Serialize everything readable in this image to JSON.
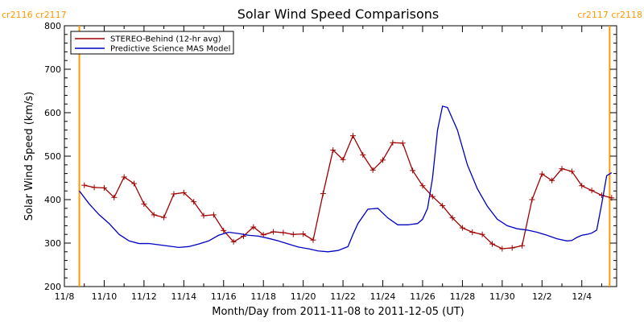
{
  "chart_data": {
    "type": "line",
    "title": "Solar Wind Speed Comparisons",
    "xlabel": "Month/Day from 2011-11-08 to 2011-12-05 (UT)",
    "ylabel": "Solar Wind Speed (km/s)",
    "ylim": [
      200,
      800
    ],
    "y_ticks": [
      200,
      300,
      400,
      500,
      600,
      700,
      800
    ],
    "x_ticks": [
      {
        "day": 0,
        "label": "11/8"
      },
      {
        "day": 2,
        "label": "11/10"
      },
      {
        "day": 4,
        "label": "11/12"
      },
      {
        "day": 6,
        "label": "11/14"
      },
      {
        "day": 8,
        "label": "11/16"
      },
      {
        "day": 10,
        "label": "11/18"
      },
      {
        "day": 12,
        "label": "11/20"
      },
      {
        "day": 14,
        "label": "11/22"
      },
      {
        "day": 16,
        "label": "11/24"
      },
      {
        "day": 18,
        "label": "11/26"
      },
      {
        "day": 20,
        "label": "11/28"
      },
      {
        "day": 22,
        "label": "11/30"
      },
      {
        "day": 24,
        "label": "12/2"
      },
      {
        "day": 26,
        "label": "12/4"
      }
    ],
    "xlim": [
      0,
      27.75
    ],
    "carrington_markers": [
      {
        "day": 0.75,
        "label": "cr2116 cr2117",
        "label_side": "left"
      },
      {
        "day": 27.4,
        "label": "cr2117 cr2118",
        "label_side": "right"
      }
    ],
    "legend_position": "top-left",
    "series": [
      {
        "name": "STEREO-Behind (12-hr avg)",
        "color": "#A00000",
        "marker": "plus",
        "x": [
          1.0,
          1.5,
          2.0,
          2.5,
          3.0,
          3.5,
          4.0,
          4.5,
          5.0,
          5.5,
          6.0,
          6.5,
          7.0,
          7.5,
          8.0,
          8.5,
          9.0,
          9.5,
          10.0,
          10.5,
          11.0,
          11.5,
          12.0,
          12.5,
          13.0,
          13.5,
          14.0,
          14.5,
          15.0,
          15.5,
          16.0,
          16.5,
          17.0,
          17.5,
          18.0,
          18.5,
          19.0,
          19.5,
          20.0,
          20.5,
          21.0,
          21.5,
          22.0,
          22.5,
          23.0,
          23.5,
          24.0,
          24.5,
          25.0,
          25.5,
          26.0,
          26.5,
          27.0,
          27.5
        ],
        "y": [
          433,
          428,
          427,
          405,
          452,
          437,
          390,
          365,
          359,
          413,
          416,
          395,
          363,
          365,
          329,
          303,
          316,
          337,
          319,
          326,
          324,
          320,
          321,
          307,
          414,
          514,
          492,
          547,
          503,
          468,
          491,
          531,
          530,
          467,
          432,
          407,
          386,
          358,
          335,
          325,
          320,
          298,
          287,
          289,
          294,
          400,
          459,
          444,
          471,
          465,
          432,
          421,
          410,
          404
        ]
      },
      {
        "name": "Predictive Science MAS Model",
        "color": "#0000C0",
        "x": [
          0.75,
          1.25,
          1.75,
          2.25,
          2.75,
          3.25,
          3.75,
          4.25,
          4.75,
          5.25,
          5.75,
          6.25,
          6.75,
          7.25,
          7.75,
          8.25,
          8.75,
          9.25,
          9.75,
          10.25,
          10.75,
          11.25,
          11.75,
          12.25,
          12.75,
          13.25,
          13.75,
          14.25,
          14.5,
          14.75,
          15.25,
          15.75,
          16.25,
          16.75,
          17.25,
          17.75,
          18.0,
          18.25,
          18.5,
          18.75,
          19.0,
          19.25,
          19.75,
          20.25,
          20.75,
          21.25,
          21.75,
          22.25,
          22.75,
          23.25,
          23.75,
          24.25,
          24.75,
          25.25,
          25.5,
          25.75,
          26.0,
          26.25,
          26.5,
          26.75,
          27.0,
          27.25,
          27.5
        ],
        "y": [
          420,
          390,
          365,
          345,
          320,
          305,
          299,
          299,
          296,
          293,
          290,
          292,
          298,
          305,
          318,
          325,
          322,
          318,
          316,
          311,
          305,
          298,
          291,
          287,
          282,
          280,
          283,
          292,
          320,
          345,
          378,
          380,
          358,
          342,
          342,
          345,
          355,
          380,
          450,
          560,
          615,
          612,
          560,
          480,
          425,
          385,
          355,
          340,
          333,
          330,
          325,
          318,
          310,
          305,
          306,
          313,
          318,
          320,
          323,
          330,
          390,
          455,
          462
        ]
      }
    ]
  }
}
